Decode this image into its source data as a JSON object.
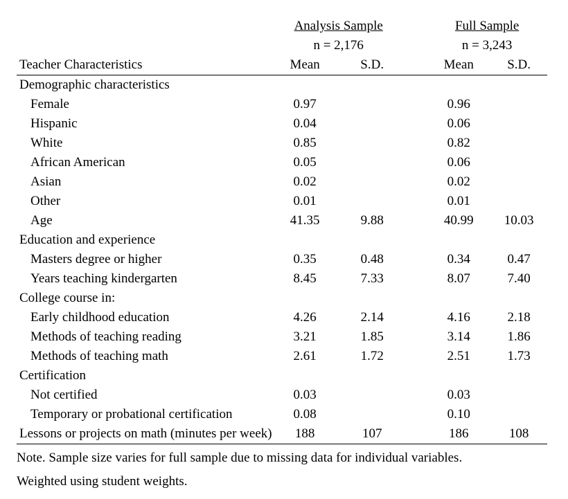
{
  "type": "table",
  "font_family": "Times New Roman",
  "base_fontsize_pt": 14,
  "colors": {
    "text": "#000000",
    "background": "#ffffff",
    "border": "#000000"
  },
  "header": {
    "group1_label": "Analysis Sample",
    "group1_n": "n = 2,176",
    "group2_label": "Full Sample",
    "group2_n": "n = 3,243",
    "col0": "Teacher Characteristics",
    "col_mean": "Mean",
    "col_sd": "S.D."
  },
  "sections": {
    "demographics": {
      "label": "Demographic characteristics",
      "rows": {
        "female": {
          "label": "Female",
          "a_mean": "0.97",
          "a_sd": "",
          "f_mean": "0.96",
          "f_sd": ""
        },
        "hispanic": {
          "label": "Hispanic",
          "a_mean": "0.04",
          "a_sd": "",
          "f_mean": "0.06",
          "f_sd": ""
        },
        "white": {
          "label": "White",
          "a_mean": "0.85",
          "a_sd": "",
          "f_mean": "0.82",
          "f_sd": ""
        },
        "afam": {
          "label": "African American",
          "a_mean": "0.05",
          "a_sd": "",
          "f_mean": "0.06",
          "f_sd": ""
        },
        "asian": {
          "label": "Asian",
          "a_mean": "0.02",
          "a_sd": "",
          "f_mean": "0.02",
          "f_sd": ""
        },
        "other": {
          "label": "Other",
          "a_mean": "0.01",
          "a_sd": "",
          "f_mean": "0.01",
          "f_sd": ""
        },
        "age": {
          "label": "Age",
          "a_mean": "41.35",
          "a_sd": "9.88",
          "f_mean": "40.99",
          "f_sd": "10.03"
        }
      }
    },
    "edu_exp": {
      "label": "Education and experience",
      "rows": {
        "masters": {
          "label": "Masters degree or higher",
          "a_mean": "0.35",
          "a_sd": "0.48",
          "f_mean": "0.34",
          "f_sd": "0.47"
        },
        "yrs_k": {
          "label": "Years teaching kindergarten",
          "a_mean": "8.45",
          "a_sd": "7.33",
          "f_mean": "8.07",
          "f_sd": "7.40"
        }
      }
    },
    "college": {
      "label": "College course in:",
      "rows": {
        "ece": {
          "label": "Early childhood education",
          "a_mean": "4.26",
          "a_sd": "2.14",
          "f_mean": "4.16",
          "f_sd": "2.18"
        },
        "reading": {
          "label": "Methods of teaching reading",
          "a_mean": "3.21",
          "a_sd": "1.85",
          "f_mean": "3.14",
          "f_sd": "1.86"
        },
        "math": {
          "label": "Methods of teaching math",
          "a_mean": "2.61",
          "a_sd": "1.72",
          "f_mean": "2.51",
          "f_sd": "1.73"
        }
      }
    },
    "cert": {
      "label": "Certification",
      "rows": {
        "not_cert": {
          "label": "Not certified",
          "a_mean": "0.03",
          "a_sd": "",
          "f_mean": "0.03",
          "f_sd": ""
        },
        "temp": {
          "label": "Temporary or probational certification",
          "a_mean": "0.08",
          "a_sd": "",
          "f_mean": "0.10",
          "f_sd": ""
        }
      }
    },
    "lessons": {
      "label": "Lessons or projects on math (minutes per week)",
      "a_mean": "188",
      "a_sd": "107",
      "f_mean": "186",
      "f_sd": "108"
    }
  },
  "notes": {
    "line1": "Note. Sample size varies for full sample due to missing data for individual variables.",
    "line2": "Weighted using student weights."
  }
}
